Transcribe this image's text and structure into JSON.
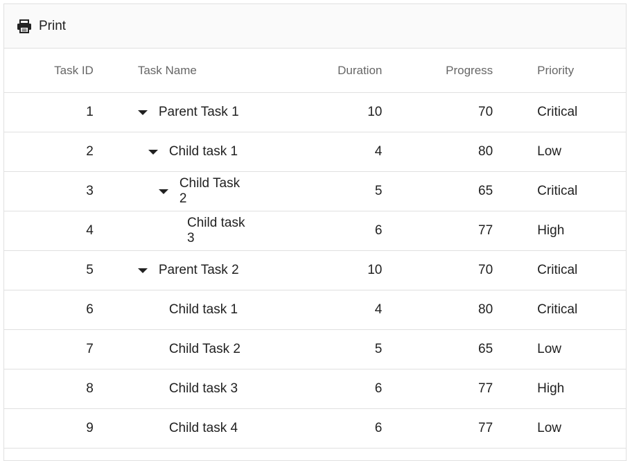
{
  "toolbar": {
    "print_label": "Print",
    "print_icon": "printer-icon"
  },
  "columns": {
    "task_id": "Task ID",
    "task_name": "Task Name",
    "duration": "Duration",
    "progress": "Progress",
    "priority": "Priority"
  },
  "rows": [
    {
      "id": "1",
      "name": "Parent Task 1",
      "duration": "10",
      "progress": "70",
      "priority": "Critical",
      "level": 0,
      "expandable": true
    },
    {
      "id": "2",
      "name": "Child task 1",
      "duration": "4",
      "progress": "80",
      "priority": "Low",
      "level": 1,
      "expandable": true
    },
    {
      "id": "3",
      "name": "Child Task 2",
      "duration": "5",
      "progress": "65",
      "priority": "Critical",
      "level": 2,
      "expandable": true
    },
    {
      "id": "4",
      "name": "Child task 3",
      "duration": "6",
      "progress": "77",
      "priority": "High",
      "level": 3,
      "expandable": false
    },
    {
      "id": "5",
      "name": "Parent Task 2",
      "duration": "10",
      "progress": "70",
      "priority": "Critical",
      "level": 0,
      "expandable": true
    },
    {
      "id": "6",
      "name": "Child task 1",
      "duration": "4",
      "progress": "80",
      "priority": "Critical",
      "level": 1,
      "expandable": false
    },
    {
      "id": "7",
      "name": "Child Task 2",
      "duration": "5",
      "progress": "65",
      "priority": "Low",
      "level": 1,
      "expandable": false
    },
    {
      "id": "8",
      "name": "Child task 3",
      "duration": "6",
      "progress": "77",
      "priority": "High",
      "level": 1,
      "expandable": false
    },
    {
      "id": "9",
      "name": "Child task 4",
      "duration": "6",
      "progress": "77",
      "priority": "Low",
      "level": 1,
      "expandable": false
    }
  ]
}
